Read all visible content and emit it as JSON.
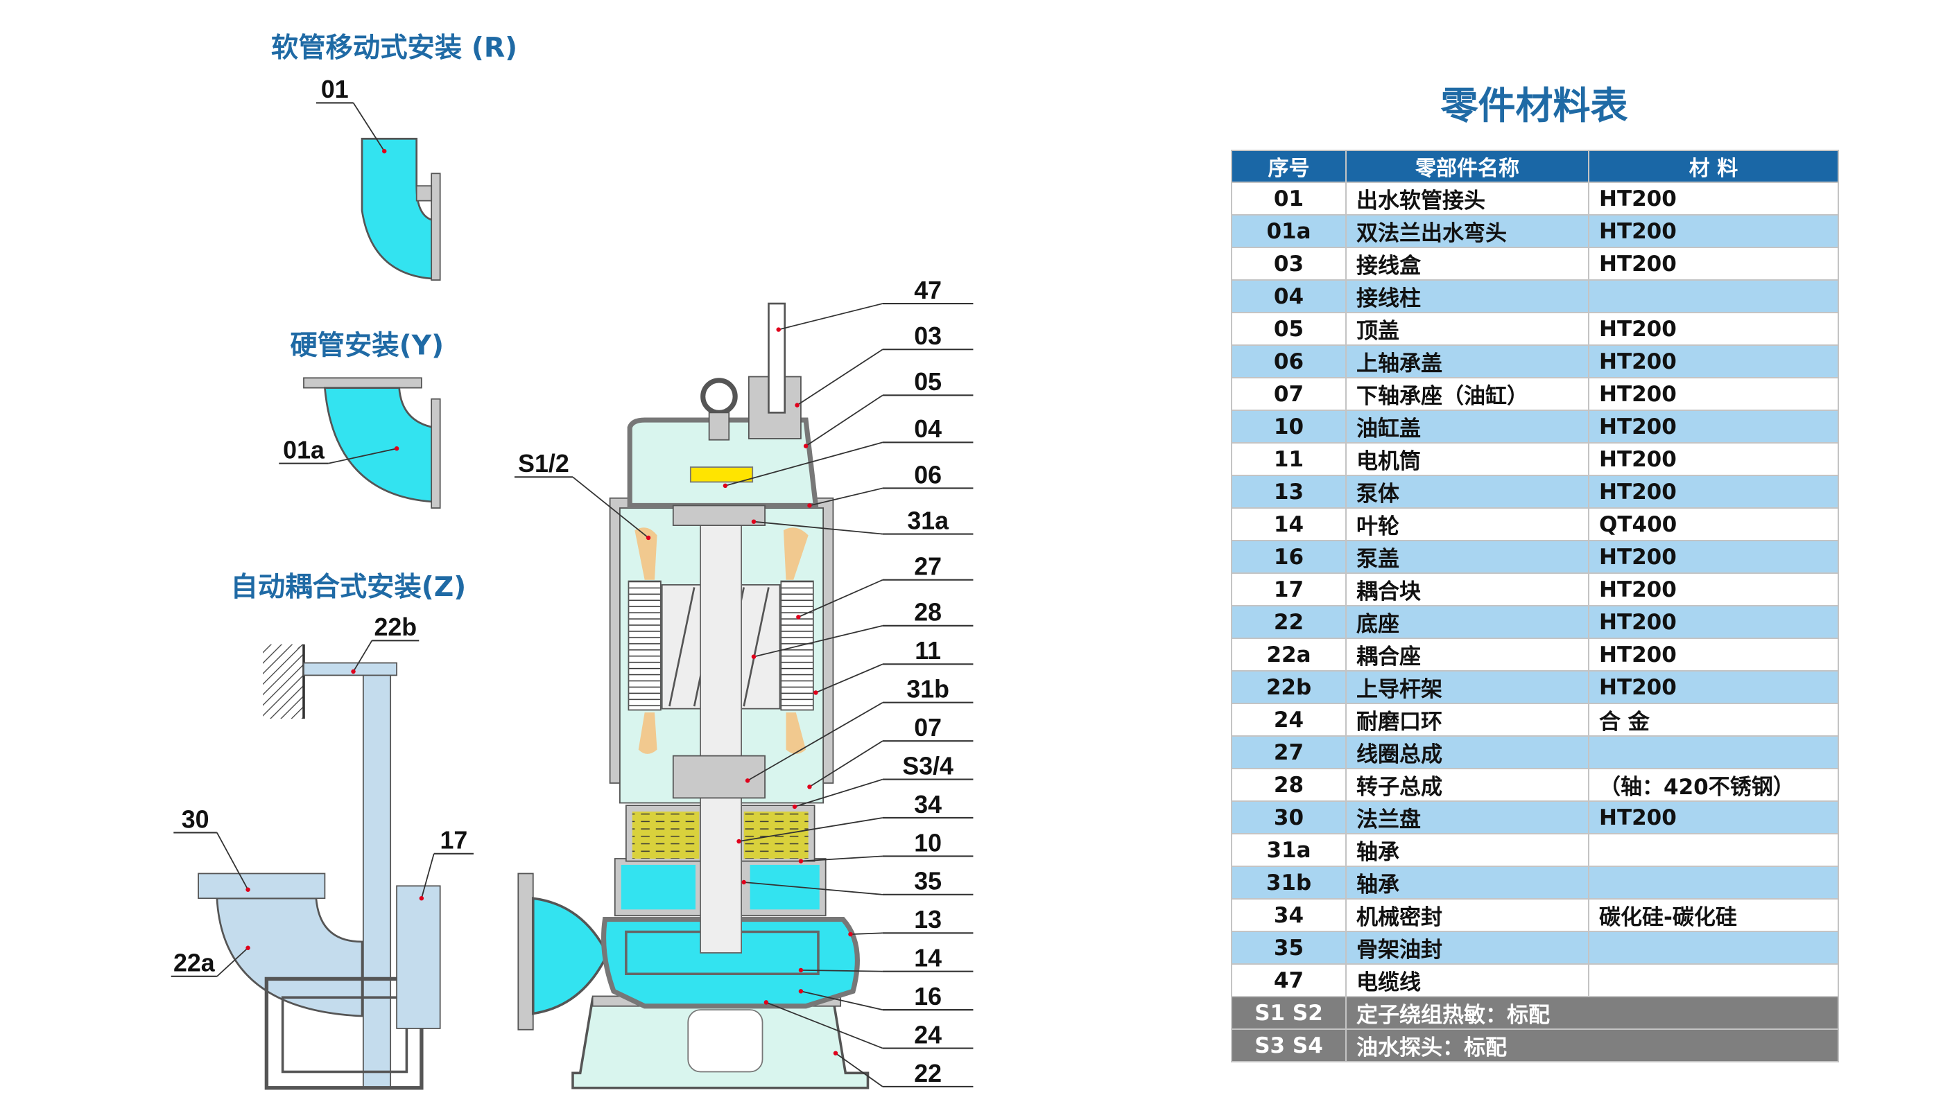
{
  "headings": {
    "r": "软管移动式安装 (R)",
    "y": "硬管安装(Y)",
    "z": "自动耦合式安装(Z)"
  },
  "left_callouts": [
    "01",
    "01a",
    "22b",
    "30",
    "17",
    "22a"
  ],
  "pump_callouts": [
    "47",
    "03",
    "05",
    "04",
    "06",
    "31a",
    "27",
    "28",
    "11",
    "31b",
    "07",
    "S3/4",
    "34",
    "10",
    "35",
    "13",
    "14",
    "16",
    "24",
    "22"
  ],
  "sensor_callout": "S1/2",
  "colors": {
    "accent": "#1f6aa5",
    "header": "#1a67a6",
    "stripe": "#a9d5f1",
    "note_row": "#7f7f7f",
    "water": "#33e3f0",
    "interior": "#d9f5ee",
    "casting": "#c9c9c9",
    "coil": "#f1c98f",
    "oil": "#d9d13c",
    "terminal": "#ffe400"
  },
  "table": {
    "title": "零件材料表",
    "headers": [
      "序号",
      "零部件名称",
      "材  料"
    ],
    "rows": [
      [
        "01",
        "出水软管接头",
        "HT200"
      ],
      [
        "01a",
        "双法兰出水弯头",
        "HT200"
      ],
      [
        "03",
        "接线盒",
        "HT200"
      ],
      [
        "04",
        "接线柱",
        ""
      ],
      [
        "05",
        "顶盖",
        "HT200"
      ],
      [
        "06",
        "上轴承盖",
        "HT200"
      ],
      [
        "07",
        "下轴承座（油缸）",
        "HT200"
      ],
      [
        "10",
        "油缸盖",
        "HT200"
      ],
      [
        "11",
        "电机筒",
        "HT200"
      ],
      [
        "13",
        "泵体",
        "HT200"
      ],
      [
        "14",
        "叶轮",
        "QT400"
      ],
      [
        "16",
        "泵盖",
        "HT200"
      ],
      [
        "17",
        "耦合块",
        "HT200"
      ],
      [
        "22",
        "底座",
        "HT200"
      ],
      [
        "22a",
        "耦合座",
        "HT200"
      ],
      [
        "22b",
        "上导杆架",
        "HT200"
      ],
      [
        "24",
        "耐磨口环",
        "合 金"
      ],
      [
        "27",
        "线圈总成",
        ""
      ],
      [
        "28",
        "转子总成",
        "（轴：420不锈钢）"
      ],
      [
        "30",
        "法兰盘",
        "HT200"
      ],
      [
        "31a",
        "轴承",
        ""
      ],
      [
        "31b",
        "轴承",
        ""
      ],
      [
        "34",
        "机械密封",
        "碳化硅-碳化硅"
      ],
      [
        "35",
        "骨架油封",
        ""
      ],
      [
        "47",
        "电缆线",
        ""
      ]
    ],
    "notes": [
      [
        "S1 S2",
        "定子绕组热敏：标配"
      ],
      [
        "S3 S4",
        "油水探头：标配"
      ]
    ]
  }
}
